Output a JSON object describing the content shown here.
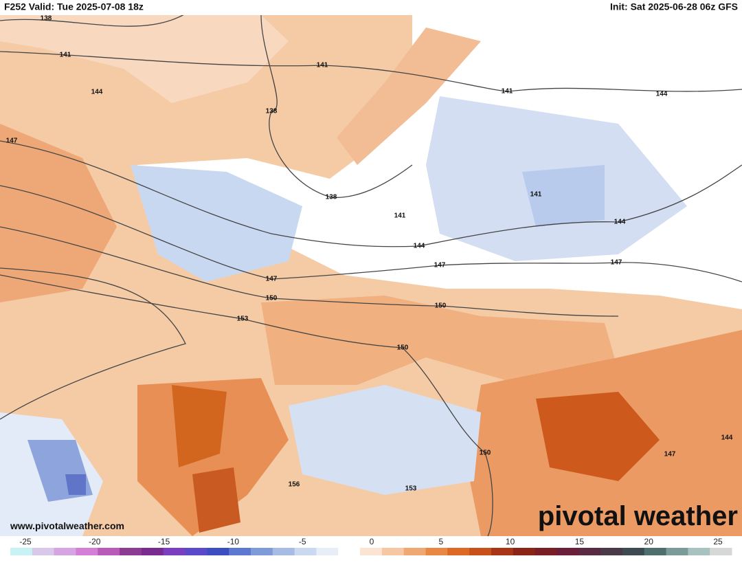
{
  "header": {
    "left": "F252 Valid: Tue 2025-07-08 18z",
    "right": "Init: Sat 2025-06-28 06z GFS"
  },
  "contour_labels": [
    "138",
    "141",
    "141",
    "144",
    "138",
    "141",
    "144",
    "147",
    "138",
    "141",
    "141",
    "144",
    "144",
    "147",
    "147",
    "147",
    "150",
    "150",
    "153",
    "150",
    "150",
    "144",
    "147",
    "156",
    "153"
  ],
  "watermark": "www.pivotalweather.com",
  "logo": "pivotal weather",
  "colorbar": {
    "range": [
      -25,
      25
    ],
    "ticks": [
      -25,
      -20,
      -15,
      -10,
      -5,
      0,
      5,
      10,
      15,
      20,
      25
    ],
    "colors": [
      "#c9f2f5",
      "#d9c8ea",
      "#d6a4e3",
      "#d47ed8",
      "#b95ab8",
      "#8c3a92",
      "#7a2b90",
      "#7a3fc0",
      "#5a49c8",
      "#3d4fc0",
      "#5c78d0",
      "#7f9ad8",
      "#a6bce5",
      "#cbd9f0",
      "#e8eef8",
      "#ffffff",
      "#fbe4d2",
      "#f6c7a2",
      "#f0a872",
      "#e88844",
      "#dc6a24",
      "#c8501a",
      "#a83616",
      "#8a2414",
      "#7a1e26",
      "#6b1e3a",
      "#5a2a44",
      "#4a3a48",
      "#3e4a52",
      "#4f6f6e",
      "#7a9b9a",
      "#a8c2c0",
      "#d6d8d8"
    ]
  }
}
